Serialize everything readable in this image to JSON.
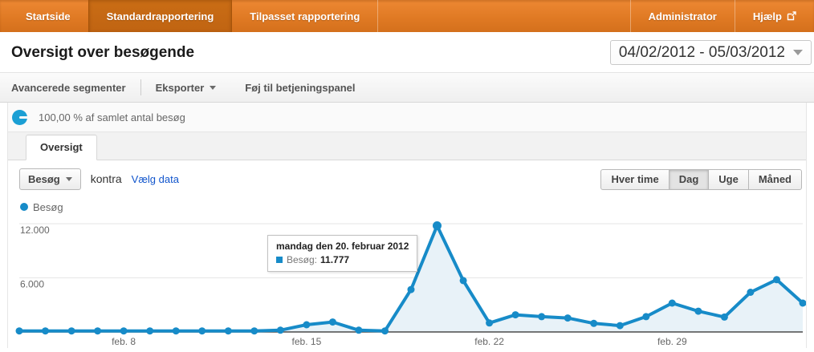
{
  "nav": {
    "items": [
      {
        "label": "Startside",
        "active": false
      },
      {
        "label": "Standardrapportering",
        "active": true
      },
      {
        "label": "Tilpasset rapportering",
        "active": false
      }
    ],
    "right_items": [
      {
        "label": "Administrator"
      },
      {
        "label": "Hjælp"
      }
    ]
  },
  "header": {
    "title": "Oversigt over besøgende",
    "date_range": "04/02/2012 - 05/03/2012"
  },
  "toolbar": {
    "advanced_segments": "Avancerede segmenter",
    "export": "Eksporter",
    "add_to_dashboard": "Føj til betjeningspanel"
  },
  "segment": {
    "label": "100,00 % af samlet antal besøg"
  },
  "tabs": {
    "overview": "Oversigt"
  },
  "controls": {
    "metric": "Besøg",
    "versus": "kontra",
    "select_data": "Vælg data",
    "granularity": [
      "Hver time",
      "Dag",
      "Uge",
      "Måned"
    ],
    "granularity_active": "Dag"
  },
  "legend": {
    "series": "Besøg"
  },
  "tooltip": {
    "title": "mandag den 20. februar 2012",
    "series": "Besøg:",
    "value": "11.777"
  },
  "colors": {
    "accent_orange": "#e07a24",
    "line_blue": "#178bc8",
    "area_fill": "#e8f2f8",
    "segment_icon_blue": "#1b9fd4",
    "grid": "#e6e6e6",
    "axis": "#4a4a4a"
  },
  "chart_data": {
    "type": "area",
    "title": "Besøg pr. dag",
    "x": [
      "2012-02-04",
      "2012-02-05",
      "2012-02-06",
      "2012-02-07",
      "2012-02-08",
      "2012-02-09",
      "2012-02-10",
      "2012-02-11",
      "2012-02-12",
      "2012-02-13",
      "2012-02-14",
      "2012-02-15",
      "2012-02-16",
      "2012-02-17",
      "2012-02-18",
      "2012-02-19",
      "2012-02-20",
      "2012-02-21",
      "2012-02-22",
      "2012-02-23",
      "2012-02-24",
      "2012-02-25",
      "2012-02-26",
      "2012-02-27",
      "2012-02-28",
      "2012-02-29",
      "2012-03-01",
      "2012-03-02",
      "2012-03-03",
      "2012-03-04",
      "2012-03-05"
    ],
    "series": [
      {
        "name": "Besøg",
        "values": [
          120,
          120,
          120,
          120,
          120,
          120,
          120,
          120,
          120,
          120,
          200,
          800,
          1100,
          200,
          120,
          4700,
          11777,
          5700,
          1000,
          1900,
          1700,
          1550,
          950,
          700,
          1700,
          3200,
          2300,
          1650,
          4400,
          5800,
          3200
        ]
      }
    ],
    "highlight_index": 16,
    "highlight_value_label": "11.777",
    "ylim": [
      0,
      12000
    ],
    "yticks": [
      {
        "value": 6000,
        "label": "6.000"
      },
      {
        "value": 12000,
        "label": "12.000"
      }
    ],
    "xticks": [
      {
        "index": 4,
        "label": "feb. 8"
      },
      {
        "index": 11,
        "label": "feb. 15"
      },
      {
        "index": 18,
        "label": "feb. 22"
      },
      {
        "index": 25,
        "label": "feb. 29"
      }
    ],
    "grid": true,
    "legend_position": "top-left"
  }
}
